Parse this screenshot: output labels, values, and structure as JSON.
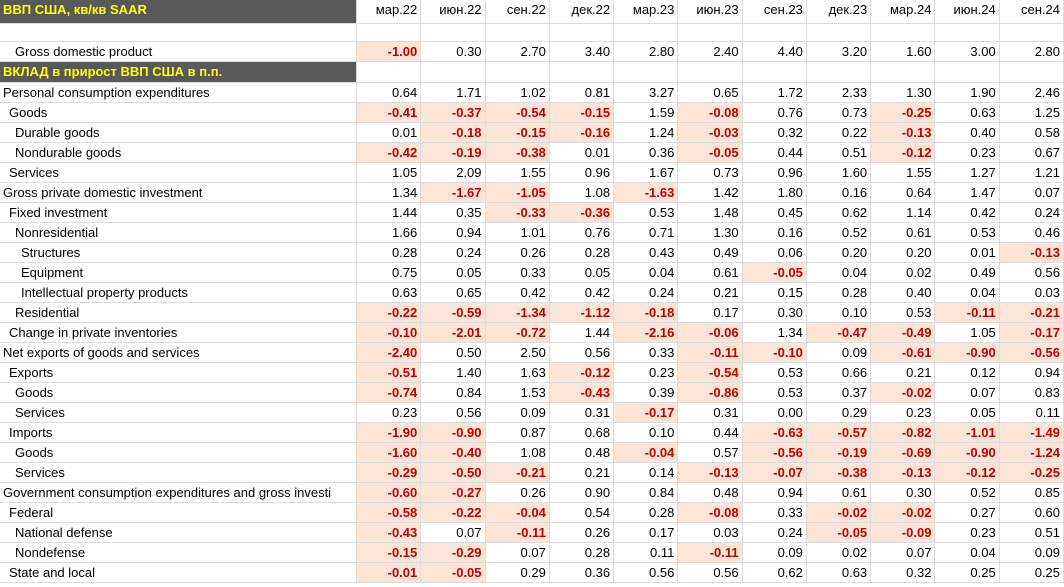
{
  "title": "ВВП США, кв/кв SAAR",
  "columns": [
    "мар.22",
    "июн.22",
    "сен.22",
    "дек.22",
    "мар.23",
    "июн.23",
    "сен.23",
    "дек.23",
    "мар.24",
    "июн.24",
    "сен.24"
  ],
  "gdp": {
    "label": "Gross domestic product",
    "values": [
      "-1.00",
      "0.30",
      "2.70",
      "3.40",
      "2.80",
      "2.40",
      "4.40",
      "3.20",
      "1.60",
      "3.00",
      "2.80"
    ]
  },
  "section": "ВКЛАД в прирост ВВП США в п.п.",
  "rows": [
    {
      "label": "Personal consumption expenditures",
      "values": [
        "0.64",
        "1.71",
        "1.02",
        "0.81",
        "3.27",
        "0.65",
        "1.72",
        "2.33",
        "1.30",
        "1.90",
        "2.46"
      ]
    },
    {
      "label": "Goods",
      "values": [
        "-0.41",
        "-0.37",
        "-0.54",
        "-0.15",
        "1.59",
        "-0.08",
        "0.76",
        "0.73",
        "-0.25",
        "0.63",
        "1.25"
      ]
    },
    {
      "label": "Durable goods",
      "values": [
        "0.01",
        "-0.18",
        "-0.15",
        "-0.16",
        "1.24",
        "-0.03",
        "0.32",
        "0.22",
        "-0.13",
        "0.40",
        "0.58"
      ]
    },
    {
      "label": "Nondurable goods",
      "values": [
        "-0.42",
        "-0.19",
        "-0.38",
        "0.01",
        "0.36",
        "-0.05",
        "0.44",
        "0.51",
        "-0.12",
        "0.23",
        "0.67"
      ]
    },
    {
      "label": "Services",
      "values": [
        "1.05",
        "2.09",
        "1.55",
        "0.96",
        "1.67",
        "0.73",
        "0.96",
        "1.60",
        "1.55",
        "1.27",
        "1.21"
      ]
    },
    {
      "label": "Gross private domestic investment",
      "values": [
        "1.34",
        "-1.67",
        "-1.05",
        "1.08",
        "-1.63",
        "1.42",
        "1.80",
        "0.16",
        "0.64",
        "1.47",
        "0.07"
      ]
    },
    {
      "label": "Fixed investment",
      "values": [
        "1.44",
        "0.35",
        "-0.33",
        "-0.36",
        "0.53",
        "1.48",
        "0.45",
        "0.62",
        "1.14",
        "0.42",
        "0.24"
      ]
    },
    {
      "label": "Nonresidential",
      "values": [
        "1.66",
        "0.94",
        "1.01",
        "0.76",
        "0.71",
        "1.30",
        "0.16",
        "0.52",
        "0.61",
        "0.53",
        "0.46"
      ]
    },
    {
      "label": "Structures",
      "values": [
        "0.28",
        "0.24",
        "0.26",
        "0.28",
        "0.43",
        "0.49",
        "0.06",
        "0.20",
        "0.20",
        "0.01",
        "-0.13"
      ]
    },
    {
      "label": "Equipment",
      "values": [
        "0.75",
        "0.05",
        "0.33",
        "0.05",
        "0.04",
        "0.61",
        "-0.05",
        "0.04",
        "0.02",
        "0.49",
        "0.56"
      ]
    },
    {
      "label": "Intellectual property products",
      "values": [
        "0.63",
        "0.65",
        "0.42",
        "0.42",
        "0.24",
        "0.21",
        "0.15",
        "0.28",
        "0.40",
        "0.04",
        "0.03"
      ]
    },
    {
      "label": "Residential",
      "values": [
        "-0.22",
        "-0.59",
        "-1.34",
        "-1.12",
        "-0.18",
        "0.17",
        "0.30",
        "0.10",
        "0.53",
        "-0.11",
        "-0.21"
      ]
    },
    {
      "label": "Change in private inventories",
      "values": [
        "-0.10",
        "-2.01",
        "-0.72",
        "1.44",
        "-2.16",
        "-0.06",
        "1.34",
        "-0.47",
        "-0.49",
        "1.05",
        "-0.17"
      ]
    },
    {
      "label": "Net exports of goods and services",
      "values": [
        "-2.40",
        "0.50",
        "2.50",
        "0.56",
        "0.33",
        "-0.11",
        "-0.10",
        "0.09",
        "-0.61",
        "-0.90",
        "-0.56"
      ]
    },
    {
      "label": "Exports",
      "values": [
        "-0.51",
        "1.40",
        "1.63",
        "-0.12",
        "0.23",
        "-0.54",
        "0.53",
        "0.66",
        "0.21",
        "0.12",
        "0.94"
      ]
    },
    {
      "label": "Goods",
      "values": [
        "-0.74",
        "0.84",
        "1.53",
        "-0.43",
        "0.39",
        "-0.86",
        "0.53",
        "0.37",
        "-0.02",
        "0.07",
        "0.83"
      ]
    },
    {
      "label": "Services",
      "values": [
        "0.23",
        "0.56",
        "0.09",
        "0.31",
        "-0.17",
        "0.31",
        "0.00",
        "0.29",
        "0.23",
        "0.05",
        "0.11"
      ]
    },
    {
      "label": "Imports",
      "values": [
        "-1.90",
        "-0.90",
        "0.87",
        "0.68",
        "0.10",
        "0.44",
        "-0.63",
        "-0.57",
        "-0.82",
        "-1.01",
        "-1.49"
      ]
    },
    {
      "label": "Goods",
      "values": [
        "-1.60",
        "-0.40",
        "1.08",
        "0.48",
        "-0.04",
        "0.57",
        "-0.56",
        "-0.19",
        "-0.69",
        "-0.90",
        "-1.24"
      ]
    },
    {
      "label": "Services",
      "values": [
        "-0.29",
        "-0.50",
        "-0.21",
        "0.21",
        "0.14",
        "-0.13",
        "-0.07",
        "-0.38",
        "-0.13",
        "-0.12",
        "-0.25"
      ]
    },
    {
      "label": "Government consumption expenditures and gross investi",
      "values": [
        "-0.60",
        "-0.27",
        "0.26",
        "0.90",
        "0.84",
        "0.48",
        "0.94",
        "0.61",
        "0.30",
        "0.52",
        "0.85"
      ]
    },
    {
      "label": "Federal",
      "values": [
        "-0.58",
        "-0.22",
        "-0.04",
        "0.54",
        "0.28",
        "-0.08",
        "0.33",
        "-0.02",
        "-0.02",
        "0.27",
        "0.60"
      ]
    },
    {
      "label": "National defense",
      "values": [
        "-0.43",
        "0.07",
        "-0.11",
        "0.26",
        "0.17",
        "0.03",
        "0.24",
        "-0.05",
        "-0.09",
        "0.23",
        "0.51"
      ]
    },
    {
      "label": "Nondefense",
      "values": [
        "-0.15",
        "-0.29",
        "0.07",
        "0.28",
        "0.11",
        "-0.11",
        "0.09",
        "0.02",
        "0.07",
        "0.04",
        "0.09"
      ]
    },
    {
      "label": "State and local",
      "values": [
        "-0.01",
        "-0.05",
        "0.29",
        "0.36",
        "0.56",
        "0.56",
        "0.62",
        "0.63",
        "0.32",
        "0.25",
        "0.25"
      ]
    }
  ]
}
